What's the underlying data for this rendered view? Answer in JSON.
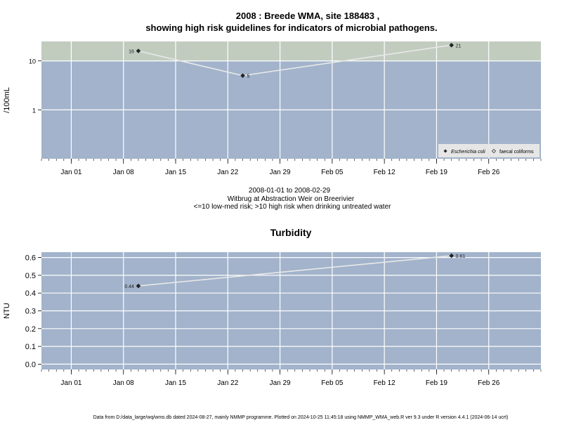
{
  "page": {
    "title_line1": "2008 : Breede WMA, site 188483 ,",
    "title_line2": "showing high risk guidelines for indicators of microbial pathogens.",
    "subtitle_line1": "2008-01-01 to 2008-02-29",
    "subtitle_line2": "Witbrug at Abstraction Weir on Breerivier",
    "subtitle_line3": "<=10 low-med risk; >10 high risk when drinking untreated water",
    "footer": "Data from D:/data_large/wq/wms.db dated 2024-08-27, mainly NMMP programme. Plotted on 2024-10-25 11:45:18 using NMMP_WMA_web.R ver 9.3 under R version 4.4.1 (2024-06-14 ucrt)"
  },
  "colors": {
    "plot_bg": "#a2b3cb",
    "high_risk_band": "#c1ccbf",
    "grid": "#ffffff",
    "series_line": "#e8e8e8",
    "marker": "#222222",
    "legend_bg": "#e6e6e6"
  },
  "chart_data": [
    {
      "type": "scatter",
      "title": "",
      "xlabel": "",
      "ylabel": "/100mL",
      "y_scale": "log10",
      "ylim": [
        0.1,
        25
      ],
      "y_ticks": [
        1,
        10
      ],
      "y_tick_labels": [
        "1",
        "10"
      ],
      "xlim": [
        "2007-12-28",
        "2008-03-04"
      ],
      "x_ticks": [
        "2008-01-01",
        "2008-01-08",
        "2008-01-15",
        "2008-01-22",
        "2008-01-29",
        "2008-02-05",
        "2008-02-12",
        "2008-02-19",
        "2008-02-26"
      ],
      "x_tick_labels": [
        "Jan 01",
        "Jan 08",
        "Jan 15",
        "Jan 22",
        "Jan 29",
        "Feb 05",
        "Feb 12",
        "Feb 19",
        "Feb 26"
      ],
      "threshold": 10,
      "threshold_meaning": "high risk above",
      "grid": true,
      "legend_position": "bottom-right",
      "legend": [
        {
          "label": "Escherichia coli",
          "symbol": "filled-diamond",
          "italic": true
        },
        {
          "label": "faecal coliforms",
          "symbol": "open-diamond",
          "italic": false
        }
      ],
      "series": [
        {
          "name": "Escherichia coli",
          "x": [
            "2008-01-10",
            "2008-01-24",
            "2008-02-21"
          ],
          "y": [
            16,
            5,
            21
          ],
          "labels": [
            "16",
            "5",
            "21"
          ]
        }
      ]
    },
    {
      "type": "line",
      "title": "Turbidity",
      "xlabel": "",
      "ylabel": "NTU",
      "ylim": [
        -0.03,
        0.63
      ],
      "y_ticks": [
        0.0,
        0.1,
        0.2,
        0.3,
        0.4,
        0.5,
        0.6
      ],
      "y_tick_labels": [
        "0.0",
        "0.1",
        "0.2",
        "0.3",
        "0.4",
        "0.5",
        "0.6"
      ],
      "xlim": [
        "2007-12-28",
        "2008-03-04"
      ],
      "x_ticks": [
        "2008-01-01",
        "2008-01-08",
        "2008-01-15",
        "2008-01-22",
        "2008-01-29",
        "2008-02-05",
        "2008-02-12",
        "2008-02-19",
        "2008-02-26"
      ],
      "x_tick_labels": [
        "Jan 01",
        "Jan 08",
        "Jan 15",
        "Jan 22",
        "Jan 29",
        "Feb 05",
        "Feb 12",
        "Feb 19",
        "Feb 26"
      ],
      "grid": true,
      "series": [
        {
          "x": [
            "2008-01-10",
            "2008-02-21"
          ],
          "y": [
            0.44,
            0.61
          ],
          "labels": [
            "0.44",
            "0.61"
          ]
        }
      ]
    }
  ]
}
